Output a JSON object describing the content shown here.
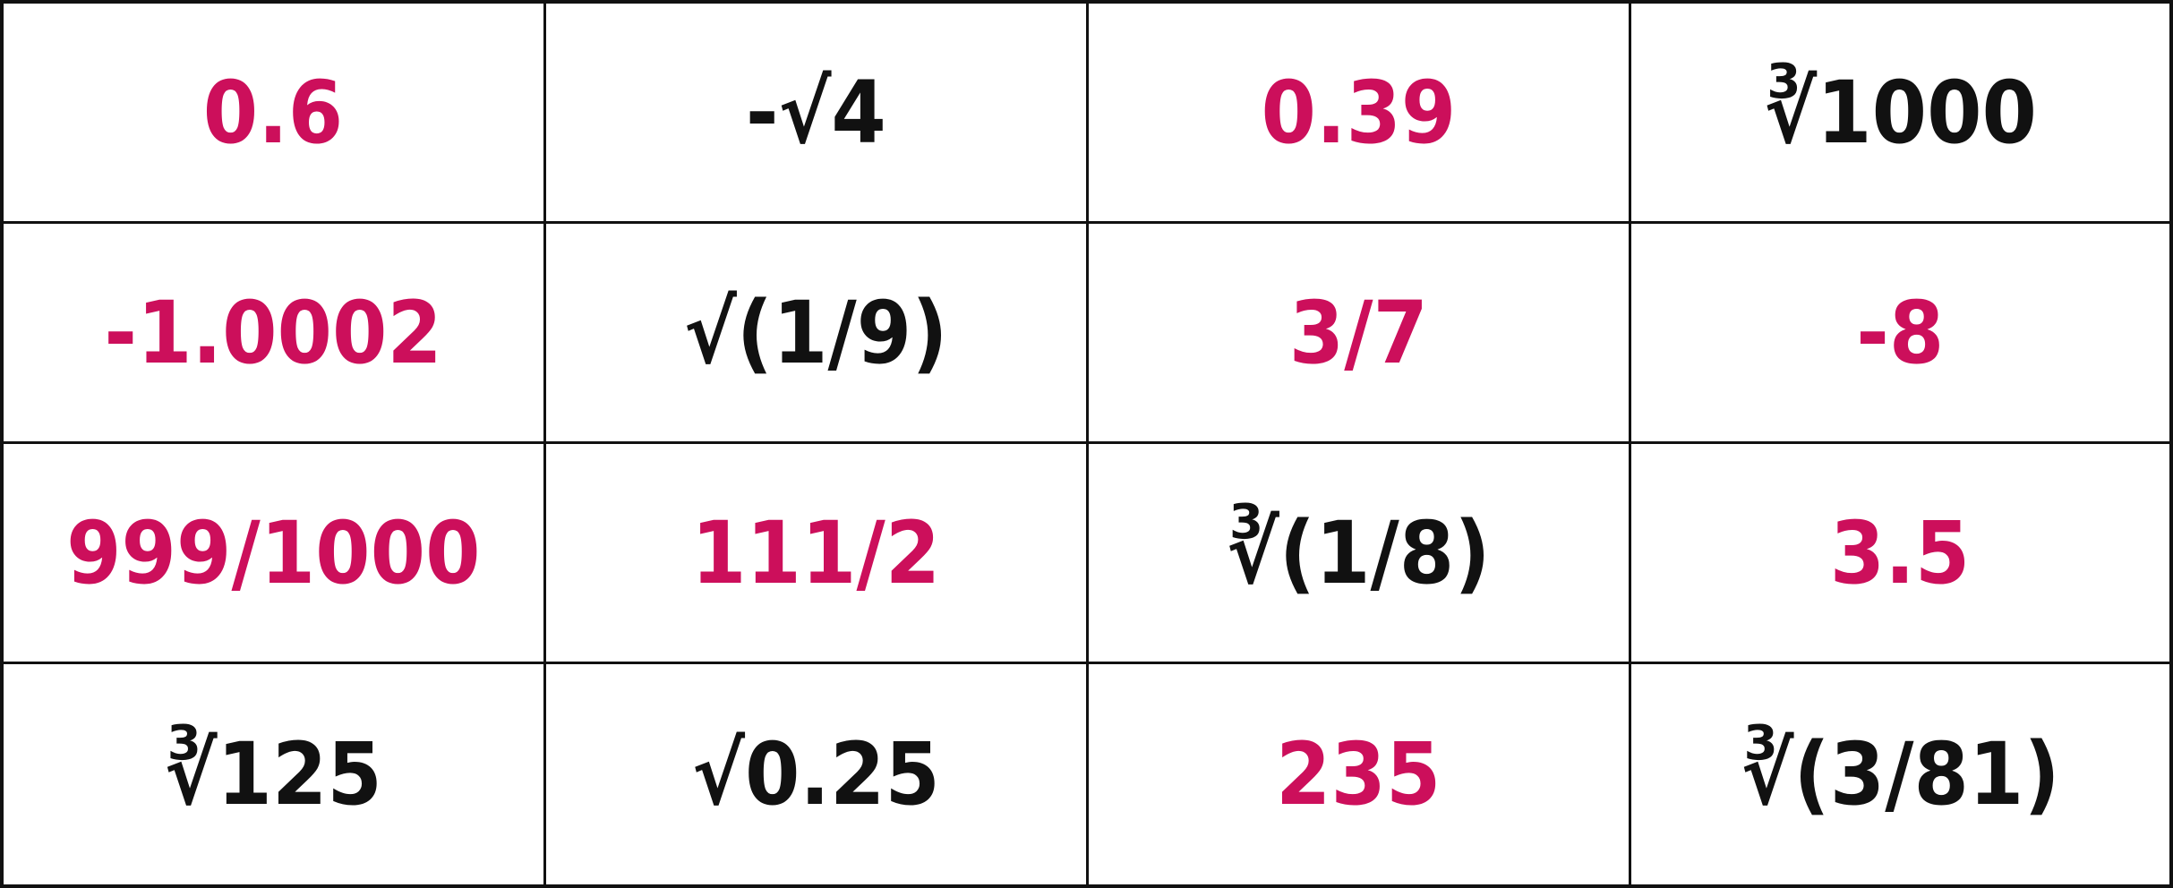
{
  "colors": {
    "highlight": "#cc0f5b",
    "text": "#111111",
    "grid_line": "#111111",
    "background": "#ffffff"
  },
  "table": {
    "rows": [
      [
        {
          "text": "0.6",
          "color": "pink"
        },
        {
          "text": "-√4",
          "color": "black"
        },
        {
          "text": "0.39",
          "color": "pink"
        },
        {
          "text": "∛1000",
          "color": "black"
        }
      ],
      [
        {
          "text": "-1.0002",
          "color": "pink"
        },
        {
          "text": "√(1/9)",
          "color": "black"
        },
        {
          "text": "3/7",
          "color": "pink"
        },
        {
          "text": "-8",
          "color": "pink"
        }
      ],
      [
        {
          "text": "999/1000",
          "color": "pink"
        },
        {
          "text": "111/2",
          "color": "pink"
        },
        {
          "text": "∛(1/8)",
          "color": "black"
        },
        {
          "text": "3.5",
          "color": "pink"
        }
      ],
      [
        {
          "text": "∛125",
          "color": "black"
        },
        {
          "text": "√0.25",
          "color": "black"
        },
        {
          "text": "235",
          "color": "pink"
        },
        {
          "text": "∛(3/81)",
          "color": "black"
        }
      ]
    ]
  }
}
